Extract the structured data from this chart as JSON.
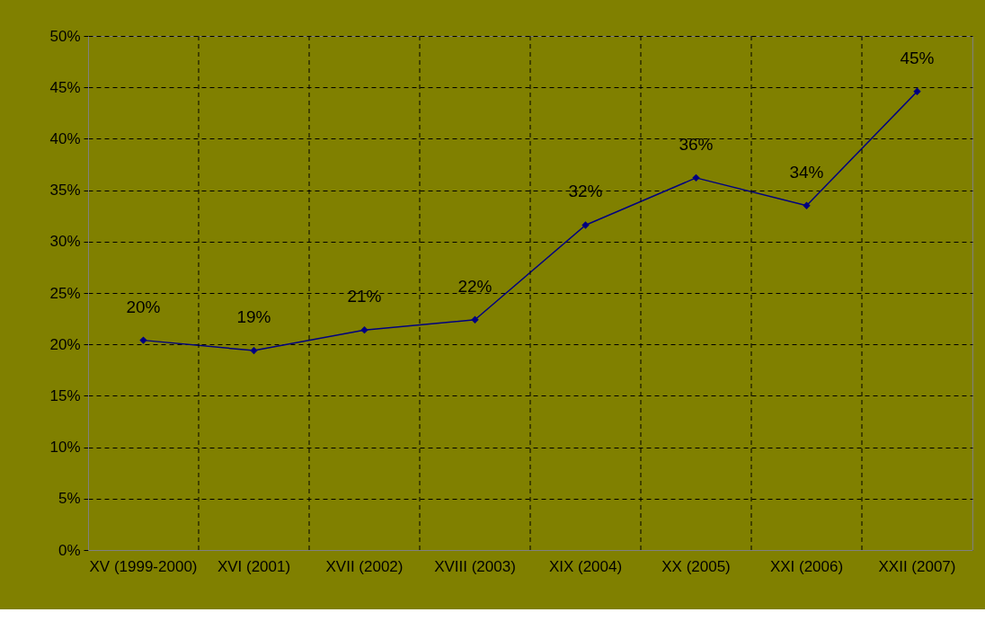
{
  "chart_data": {
    "type": "line",
    "categories": [
      "XV (1999-2000)",
      "XVI (2001)",
      "XVII (2002)",
      "XVIII (2003)",
      "XIX (2004)",
      "XX (2005)",
      "XXI (2006)",
      "XXII (2007)"
    ],
    "series": [
      {
        "color": "#000080",
        "values": [
          20.4,
          19.4,
          21.4,
          22.4,
          31.6,
          36.2,
          33.5,
          44.6
        ],
        "value_labels": [
          "20%",
          "19%",
          "21%",
          "22%",
          "32%",
          "36%",
          "34%",
          "45%"
        ]
      }
    ],
    "ylim": [
      0,
      50
    ],
    "yticks": [
      {
        "value": 0,
        "label": "0%"
      },
      {
        "value": 5,
        "label": "5%"
      },
      {
        "value": 10,
        "label": "10%"
      },
      {
        "value": 15,
        "label": "15%"
      },
      {
        "value": 20,
        "label": "20%"
      },
      {
        "value": 25,
        "label": "25%"
      },
      {
        "value": 30,
        "label": "30%"
      },
      {
        "value": 35,
        "label": "35%"
      },
      {
        "value": 40,
        "label": "40%"
      },
      {
        "value": 45,
        "label": "45%"
      },
      {
        "value": 50,
        "label": "50%"
      }
    ],
    "grid": true,
    "marker": "diamond",
    "line_style": "solid"
  }
}
